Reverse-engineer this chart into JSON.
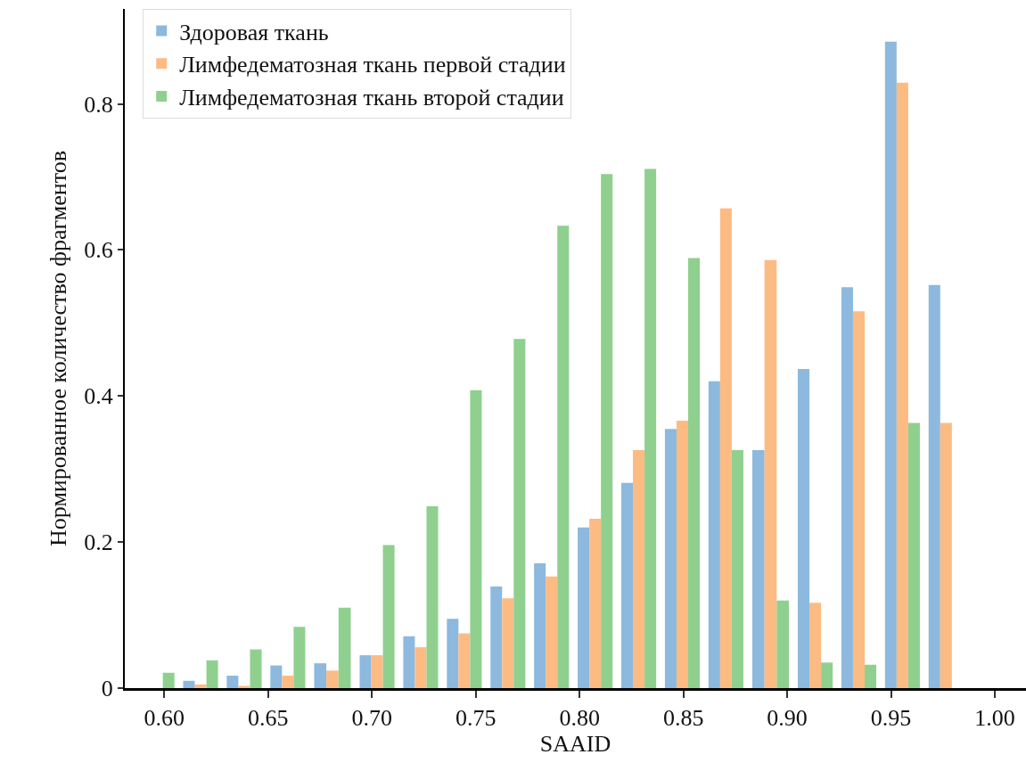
{
  "chart_data": {
    "type": "histogram",
    "xlabel": "SAAID",
    "ylabel": "Нормированное количество фрагментов",
    "bins": [
      0.586,
      0.607,
      0.628,
      0.649,
      0.67,
      0.692,
      0.713,
      0.734,
      0.755,
      0.776,
      0.797,
      0.818,
      0.839,
      0.86,
      0.881,
      0.903,
      0.924,
      0.945,
      0.966,
      0.987
    ],
    "series": [
      {
        "name": "Здоровая ткань",
        "color": "#8cb9dd",
        "values": [
          0,
          0.01,
          0.017,
          0.031,
          0.034,
          0.045,
          0.071,
          0.095,
          0.139,
          0.171,
          0.22,
          0.281,
          0.355,
          0.42,
          0.326,
          0.437,
          0.549,
          0.885,
          0.552
        ]
      },
      {
        "name": "Лимфедематозная ткань первой стадии",
        "color": "#fdbb84",
        "values": [
          0,
          0.005,
          0.003,
          0.017,
          0.024,
          0.045,
          0.056,
          0.075,
          0.123,
          0.153,
          0.232,
          0.326,
          0.366,
          0.657,
          0.586,
          0.117,
          0.516,
          0.829,
          0.363
        ]
      },
      {
        "name": "Лимфедематозная ткань второй стадии",
        "color": "#8fd08f",
        "values": [
          0.021,
          0.038,
          0.053,
          0.084,
          0.11,
          0.196,
          0.249,
          0.408,
          0.478,
          0.633,
          0.704,
          0.711,
          0.589,
          0.326,
          0.12,
          0.035,
          0.032,
          0.363,
          0
        ]
      }
    ],
    "xlim": [
      0.581,
      1.015
    ],
    "xticks": [
      {
        "value": 0.6,
        "label": "0.60"
      },
      {
        "value": 0.65,
        "label": "0.65"
      },
      {
        "value": 0.7,
        "label": "0.70"
      },
      {
        "value": 0.75,
        "label": "0.75"
      },
      {
        "value": 0.8,
        "label": "0.80"
      },
      {
        "value": 0.85,
        "label": "0.85"
      },
      {
        "value": 0.9,
        "label": "0.90"
      },
      {
        "value": 0.95,
        "label": "0.95"
      },
      {
        "value": 1.0,
        "label": "1.00"
      }
    ],
    "ylim": [
      0,
      0.93
    ],
    "yticks": [
      0,
      0.2,
      0.4,
      0.6,
      0.8
    ],
    "grid": false,
    "legend": "top left"
  }
}
